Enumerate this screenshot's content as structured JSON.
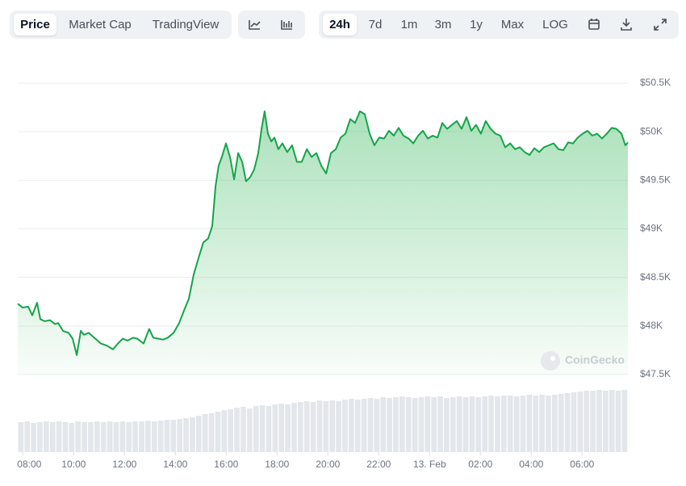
{
  "toolbar": {
    "views": [
      "Price",
      "Market Cap",
      "TradingView"
    ],
    "ranges": [
      "24h",
      "7d",
      "1m",
      "3m",
      "1y",
      "Max",
      "LOG"
    ]
  },
  "watermark": "CoinGecko",
  "chart_data": {
    "type": "area",
    "series": [
      {
        "color": "#16a34a",
        "x": [
          7.8,
          7.99,
          8.21,
          8.37,
          8.56,
          8.69,
          8.85,
          9.07,
          9.26,
          9.39,
          9.58,
          9.8,
          9.96,
          10.12,
          10.28,
          10.4,
          10.59,
          10.85,
          11.07,
          11.29,
          11.55,
          11.74,
          11.93,
          12.12,
          12.34,
          12.5,
          12.75,
          12.97,
          13.13,
          13.32,
          13.51,
          13.7,
          13.93,
          14.15,
          14.34,
          14.53,
          14.72,
          14.91,
          15.1,
          15.29,
          15.45,
          15.58,
          15.7,
          15.83,
          15.99,
          16.15,
          16.31,
          16.47,
          16.63,
          16.78,
          16.94,
          17.1,
          17.26,
          17.39,
          17.51,
          17.64,
          17.77,
          17.9,
          18.05,
          18.21,
          18.4,
          18.59,
          18.78,
          18.97,
          19.17,
          19.36,
          19.55,
          19.74,
          19.93,
          20.12,
          20.31,
          20.5,
          20.69,
          20.88,
          21.07,
          21.26,
          21.45,
          21.64,
          21.83,
          22.02,
          22.21,
          22.4,
          22.59,
          22.78,
          22.97,
          23.17,
          23.36,
          23.55,
          23.74,
          23.93,
          24.12,
          24.31,
          24.5,
          24.69,
          24.88,
          25.07,
          25.26,
          25.45,
          25.64,
          25.83,
          26.02,
          26.21,
          26.4,
          26.59,
          26.78,
          26.97,
          27.17,
          27.36,
          27.55,
          27.74,
          27.93,
          28.12,
          28.31,
          28.5,
          28.69,
          28.88,
          29.07,
          29.26,
          29.45,
          29.64,
          29.83,
          30.02,
          30.21,
          30.4,
          30.59,
          30.78,
          30.97,
          31.16,
          31.35,
          31.55,
          31.7,
          31.8
        ],
        "values": [
          48230,
          48190,
          48200,
          48110,
          48240,
          48070,
          48050,
          48060,
          48020,
          48030,
          47950,
          47930,
          47870,
          47700,
          47950,
          47910,
          47930,
          47870,
          47820,
          47800,
          47760,
          47820,
          47870,
          47850,
          47880,
          47870,
          47820,
          47970,
          47880,
          47870,
          47860,
          47880,
          47930,
          48030,
          48160,
          48280,
          48530,
          48700,
          48860,
          48900,
          49030,
          49440,
          49650,
          49740,
          49880,
          49740,
          49510,
          49780,
          49690,
          49490,
          49530,
          49610,
          49780,
          50030,
          50210,
          49980,
          49900,
          49940,
          49820,
          49880,
          49790,
          49860,
          49690,
          49690,
          49820,
          49740,
          49780,
          49650,
          49570,
          49780,
          49820,
          49940,
          49980,
          50130,
          50090,
          50210,
          50180,
          49980,
          49860,
          49940,
          49930,
          50010,
          49960,
          50040,
          49960,
          49930,
          49880,
          49960,
          50010,
          49930,
          49960,
          49940,
          50090,
          50030,
          50070,
          50110,
          50030,
          50150,
          50010,
          50070,
          49980,
          50110,
          50030,
          49980,
          49960,
          49840,
          49880,
          49820,
          49840,
          49790,
          49760,
          49830,
          49790,
          49840,
          49860,
          49880,
          49820,
          49810,
          49890,
          49880,
          49940,
          49980,
          50010,
          49960,
          49980,
          49930,
          49980,
          50040,
          50030,
          49980,
          49860,
          49890
        ]
      }
    ],
    "volume": [
      37,
      38,
      36,
      37,
      38,
      37,
      38,
      37,
      36,
      38,
      37,
      37,
      38,
      37,
      38,
      37,
      38,
      37,
      38,
      38,
      39,
      38,
      39,
      40,
      40,
      41,
      42,
      43,
      45,
      47,
      48,
      50,
      52,
      53,
      55,
      56,
      54,
      57,
      58,
      57,
      59,
      60,
      59,
      61,
      62,
      63,
      62,
      64,
      63,
      64,
      63,
      65,
      66,
      65,
      66,
      67,
      66,
      68,
      67,
      68,
      69,
      68,
      67,
      68,
      69,
      68,
      69,
      67,
      68,
      69,
      68,
      69,
      68,
      69,
      70,
      69,
      70,
      70,
      69,
      70,
      71,
      70,
      71,
      70,
      71,
      72,
      73,
      74,
      75,
      76,
      76,
      77,
      76,
      77,
      76,
      77
    ],
    "volume_color": "#e3e6ea",
    "xlim": [
      7.8,
      31.8
    ],
    "xticks": [
      {
        "value": 8,
        "label": "08:00"
      },
      {
        "value": 10,
        "label": "10:00"
      },
      {
        "value": 12,
        "label": "12:00"
      },
      {
        "value": 14,
        "label": "14:00"
      },
      {
        "value": 16,
        "label": "16:00"
      },
      {
        "value": 18,
        "label": "18:00"
      },
      {
        "value": 20,
        "label": "20:00"
      },
      {
        "value": 22,
        "label": "22:00"
      },
      {
        "value": 24,
        "label": "13. Feb"
      },
      {
        "value": 26,
        "label": "02:00"
      },
      {
        "value": 28,
        "label": "04:00"
      },
      {
        "value": 30,
        "label": "06:00"
      }
    ],
    "ylim": [
      47500,
      50500
    ],
    "yticks": [
      {
        "value": 47500,
        "label": "$47.5K"
      },
      {
        "value": 48000,
        "label": "$48K"
      },
      {
        "value": 48500,
        "label": "$48.5K"
      },
      {
        "value": 49000,
        "label": "$49K"
      },
      {
        "value": 49500,
        "label": "$49.5K"
      },
      {
        "value": 50000,
        "label": "$50K"
      },
      {
        "value": 50500,
        "label": "$50.5K"
      }
    ],
    "grid": true
  }
}
